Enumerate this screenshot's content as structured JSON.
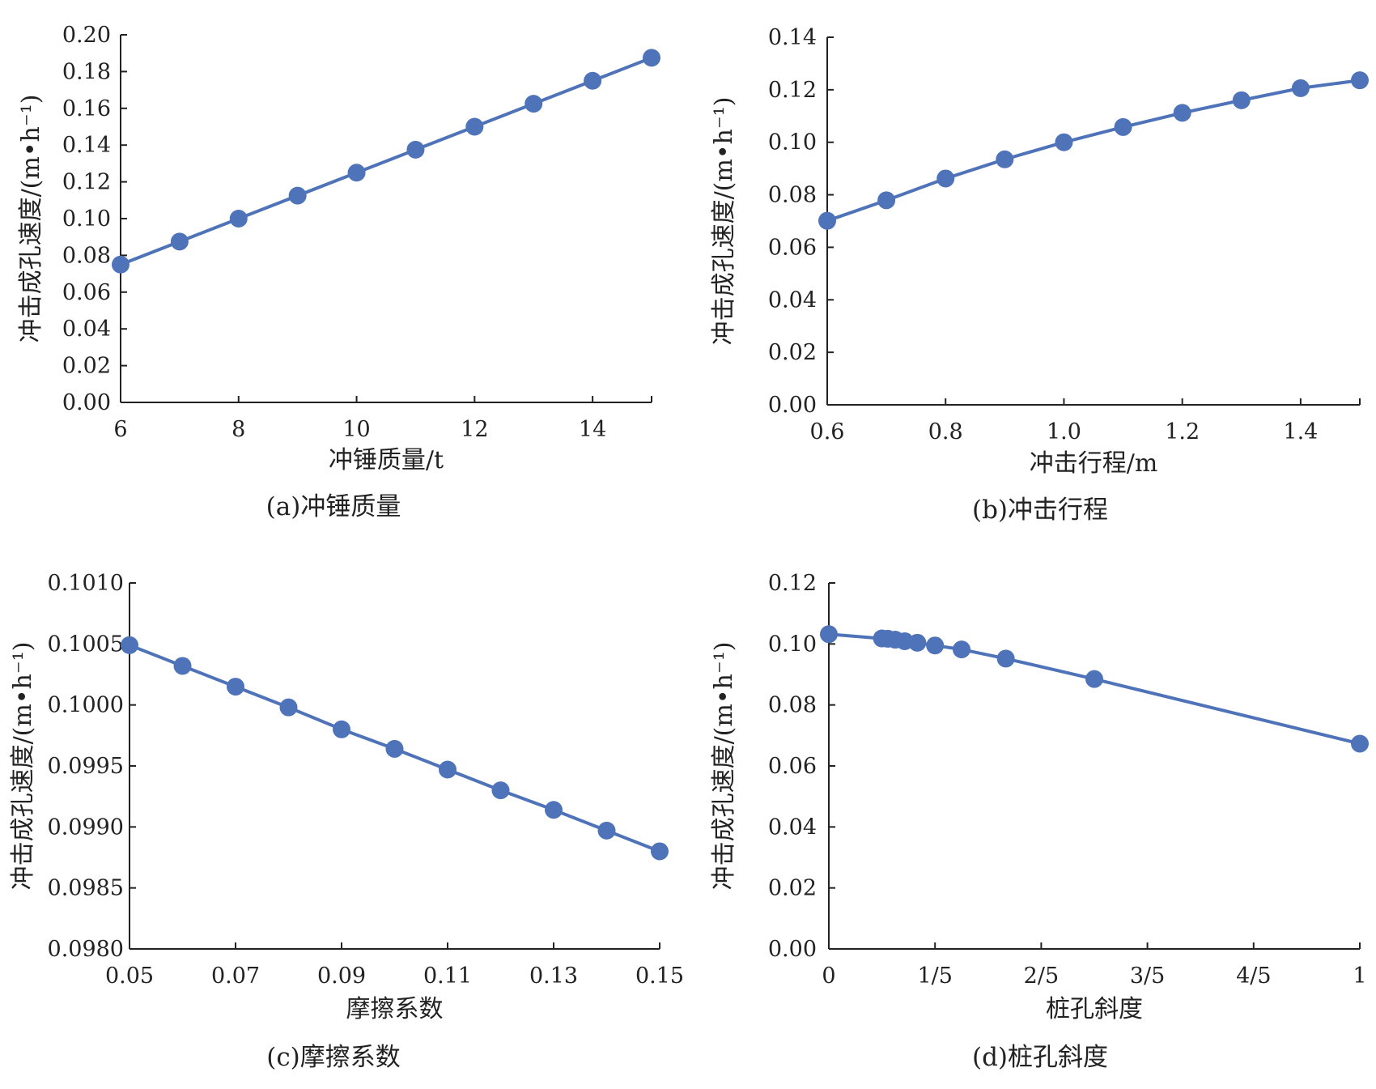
{
  "chart_data": [
    {
      "id": "a",
      "type": "line",
      "caption": "(a)冲锤质量",
      "xlabel": "冲锤质量/t",
      "ylabel": "冲击成孔速度/(m•h⁻¹)",
      "xlim": [
        6,
        15
      ],
      "ylim": [
        0.0,
        0.2
      ],
      "x_ticks": [
        6,
        8,
        10,
        12,
        14
      ],
      "x_tick_labels": [
        "6",
        "8",
        "10",
        "12",
        "14"
      ],
      "y_ticks": [
        0.0,
        0.02,
        0.04,
        0.06,
        0.08,
        0.1,
        0.12,
        0.14,
        0.16,
        0.18,
        0.2
      ],
      "y_tick_labels": [
        "0.00",
        "0.02",
        "0.04",
        "0.06",
        "0.08",
        "0.10",
        "0.12",
        "0.14",
        "0.16",
        "0.18",
        "0.20"
      ],
      "color": "#4f73b9",
      "series": [
        {
          "x": [
            6,
            7,
            8,
            9,
            10,
            11,
            12,
            13,
            14,
            15
          ],
          "values": [
            0.075,
            0.0875,
            0.1,
            0.1125,
            0.125,
            0.1375,
            0.15,
            0.1625,
            0.175,
            0.1875
          ]
        }
      ]
    },
    {
      "id": "b",
      "type": "line",
      "caption": "(b)冲击行程",
      "xlabel": "冲击行程/m",
      "ylabel": "冲击成孔速度/(m•h⁻¹)",
      "xlim": [
        0.6,
        1.5
      ],
      "ylim": [
        0.0,
        0.14
      ],
      "x_ticks": [
        0.6,
        0.8,
        1.0,
        1.2,
        1.4
      ],
      "x_tick_labels": [
        "0.6",
        "0.8",
        "1.0",
        "1.2",
        "1.4"
      ],
      "y_ticks": [
        0.0,
        0.02,
        0.04,
        0.06,
        0.08,
        0.1,
        0.12,
        0.14
      ],
      "y_tick_labels": [
        "0.00",
        "0.02",
        "0.04",
        "0.06",
        "0.08",
        "0.10",
        "0.12",
        "0.14"
      ],
      "color": "#4f73b9",
      "series": [
        {
          "x": [
            0.6,
            0.7,
            0.8,
            0.9,
            1.0,
            1.1,
            1.2,
            1.3,
            1.4,
            1.5
          ],
          "values": [
            0.0701,
            0.0779,
            0.0862,
            0.0935,
            0.1,
            0.1058,
            0.1112,
            0.116,
            0.1206,
            0.1236
          ]
        }
      ]
    },
    {
      "id": "c",
      "type": "line",
      "caption": "(c)摩擦系数",
      "xlabel": "摩擦系数",
      "ylabel": "冲击成孔速度/(m•h⁻¹)",
      "xlim": [
        0.05,
        0.15
      ],
      "ylim": [
        0.098,
        0.101
      ],
      "x_ticks": [
        0.05,
        0.07,
        0.09,
        0.11,
        0.13,
        0.15
      ],
      "x_tick_labels": [
        "0.05",
        "0.07",
        "0.09",
        "0.11",
        "0.13",
        "0.15"
      ],
      "y_ticks": [
        0.098,
        0.0985,
        0.099,
        0.0995,
        0.1,
        0.1005,
        0.101
      ],
      "y_tick_labels": [
        "0.0980",
        "0.0985",
        "0.0990",
        "0.0995",
        "0.1000",
        "0.1005",
        "0.1010"
      ],
      "color": "#4f73b9",
      "series": [
        {
          "x": [
            0.05,
            0.06,
            0.07,
            0.08,
            0.09,
            0.1,
            0.11,
            0.12,
            0.13,
            0.14,
            0.15
          ],
          "values": [
            0.10049,
            0.10032,
            0.10015,
            0.09998,
            0.0998,
            0.09964,
            0.09947,
            0.0993,
            0.09914,
            0.09897,
            0.0988
          ]
        }
      ]
    },
    {
      "id": "d",
      "type": "line",
      "caption": "(d)桩孔斜度",
      "xlabel": "桩孔斜度",
      "ylabel": "冲击成孔速度/(m•h⁻¹)",
      "xlim": [
        0,
        1
      ],
      "ylim": [
        0.0,
        0.12
      ],
      "x_ticks": [
        0,
        0.2,
        0.4,
        0.6,
        0.8,
        1.0
      ],
      "x_tick_labels": [
        "0",
        "1/5",
        "2/5",
        "3/5",
        "4/5",
        "1"
      ],
      "y_ticks": [
        0.0,
        0.02,
        0.04,
        0.06,
        0.08,
        0.1,
        0.12
      ],
      "y_tick_labels": [
        "0.00",
        "0.02",
        "0.04",
        "0.06",
        "0.08",
        "0.10",
        "0.12"
      ],
      "color": "#4f73b9",
      "series": [
        {
          "x": [
            0,
            0.1,
            0.1111,
            0.125,
            0.1429,
            0.1667,
            0.2,
            0.25,
            0.3333,
            0.5,
            1.0
          ],
          "values": [
            0.1032,
            0.1018,
            0.1017,
            0.1014,
            0.1009,
            0.1004,
            0.0995,
            0.0982,
            0.0952,
            0.0885,
            0.0673
          ]
        }
      ]
    }
  ]
}
